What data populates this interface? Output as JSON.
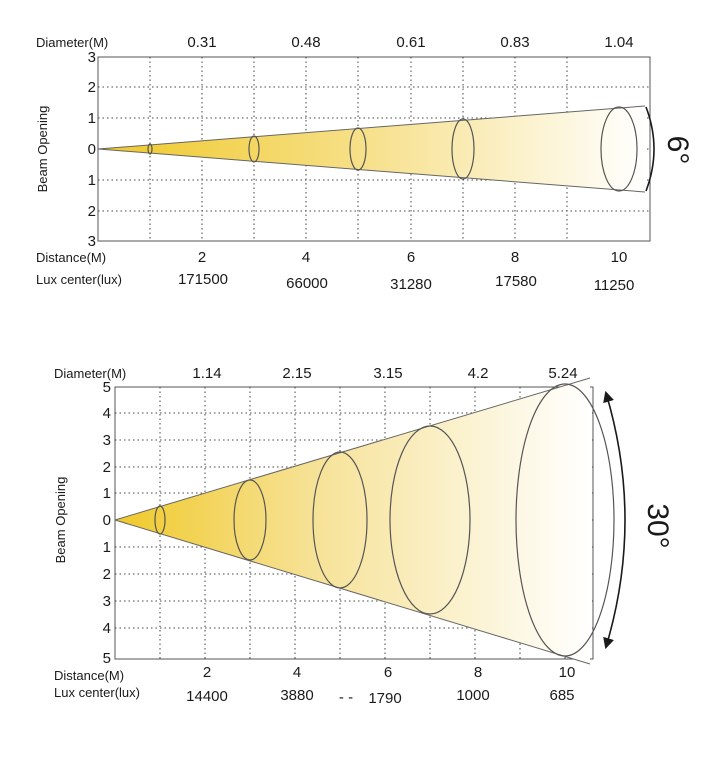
{
  "chart_data": [
    {
      "type": "diagram",
      "diameter_label": "Diameter(M)",
      "y_label": "Beam Opening",
      "distance_label": "Distance(M)",
      "lux_label": "Lux center(lux)",
      "y_ticks": [
        "3",
        "2",
        "1",
        "0",
        "1",
        "2",
        "3"
      ],
      "diameters": [
        "0.31",
        "0.48",
        "0.61",
        "0.83",
        "1.04"
      ],
      "distances": [
        "2",
        "4",
        "6",
        "8",
        "10"
      ],
      "lux": [
        "171500",
        "66000",
        "31280",
        "17580",
        "11250"
      ],
      "angle": "6°",
      "accent_color": "#f2cf3f"
    },
    {
      "type": "diagram",
      "diameter_label": "Diameter(M)",
      "y_label": "Beam Opening",
      "distance_label": "Distance(M)",
      "lux_label": "Lux center(lux)",
      "y_ticks": [
        "5",
        "4",
        "3",
        "2",
        "1",
        "0",
        "1",
        "2",
        "3",
        "4",
        "5"
      ],
      "diameters": [
        "1.14",
        "2.15",
        "3.15",
        "4.2",
        "5.24"
      ],
      "distances": [
        "2",
        "4",
        "6",
        "8",
        "10"
      ],
      "lux": [
        "14400",
        "3880",
        "1790",
        "1000",
        "685"
      ],
      "lux_prefix_mark": "- -",
      "angle": "30°",
      "accent_color": "#f2cf3f"
    }
  ]
}
